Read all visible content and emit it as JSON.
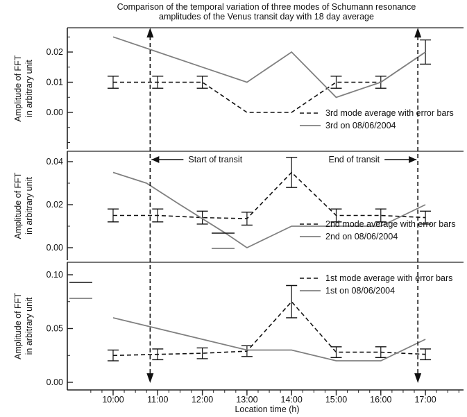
{
  "figure": {
    "title_line1": "Comparison of the temporal variation of three modes of Schumann resonance",
    "title_line2": "amplitudes of the Venus transit day with 18 day average",
    "xlabel": "Location time (h)",
    "xticks": [
      "10:00",
      "11:00",
      "12:00",
      "13:00",
      "14:00",
      "15:00",
      "16:00",
      "17:00"
    ]
  },
  "annotations": {
    "start_label": "Start of transit",
    "end_label": "End of transit",
    "start_time": 10.83,
    "end_time": 16.83
  },
  "colors": {
    "average": "#111111",
    "day": "#808080",
    "axis": "#222222",
    "frame": "#777777"
  },
  "chart_data": [
    {
      "type": "line",
      "ylabel_line1": "Amplitude of FFT",
      "ylabel_line2": "in arbitrary unit",
      "ylim": [
        -0.012,
        0.028
      ],
      "yticks": [
        0.0,
        0.01,
        0.02
      ],
      "ytick_labels": [
        "0.00",
        "0.01",
        "0.02"
      ],
      "x": [
        10,
        11,
        12,
        13,
        14,
        15,
        16,
        17
      ],
      "legend_position": "bottom-right",
      "series": [
        {
          "name": "3rd mode average with error bars",
          "style": "dashed",
          "values": [
            0.01,
            0.01,
            0.01,
            0.0,
            0.0,
            0.01,
            0.01,
            0.02
          ],
          "errors": [
            0.002,
            0.002,
            0.002,
            0.0,
            0.0,
            0.002,
            0.002,
            0.004
          ]
        },
        {
          "name": "3rd on 08/06/2004",
          "style": "solid",
          "values": [
            0.025,
            0.02,
            0.015,
            0.01,
            0.02,
            0.005,
            0.01,
            0.02
          ]
        }
      ]
    },
    {
      "type": "line",
      "ylabel_line1": "Amplitude of FFT",
      "ylabel_line2": "in arbitrary unit",
      "ylim": [
        -0.004,
        0.046
      ],
      "yticks": [
        0.0,
        0.02,
        0.04
      ],
      "ytick_labels": [
        "0.00",
        "0.02",
        "0.04"
      ],
      "x": [
        10,
        11,
        12,
        13,
        14,
        15,
        16,
        17
      ],
      "legend_position": "bottom-right",
      "series": [
        {
          "name": "2nd mode average with error bars",
          "style": "dashed",
          "values": [
            0.015,
            0.015,
            0.014,
            0.0135,
            0.035,
            0.015,
            0.015,
            0.014
          ],
          "errors": [
            0.003,
            0.003,
            0.003,
            0.003,
            0.007,
            0.003,
            0.003,
            0.003
          ]
        },
        {
          "name": "2nd on 08/06/2004",
          "style": "solid",
          "x": [
            10,
            10.75,
            11.5,
            12.5,
            13,
            13.5,
            14,
            15,
            15.5,
            16,
            17
          ],
          "values": [
            0.035,
            0.03,
            0.02,
            0.007,
            0.0,
            0.005,
            0.01,
            0.01,
            0.01,
            0.01,
            0.02
          ]
        }
      ]
    },
    {
      "type": "line",
      "ylabel_line1": "Amplitude of FFT",
      "ylabel_line2": "in arbitrary unit",
      "ylim": [
        -0.003,
        0.1
      ],
      "yticks": [
        0.0,
        0.05,
        0.1
      ],
      "ytick_labels": [
        "0.00",
        "0.05",
        "0.10"
      ],
      "x": [
        10,
        11,
        12,
        13,
        14,
        15,
        16,
        17
      ],
      "legend_position": "top-right",
      "series": [
        {
          "name": "1st mode average with error bars",
          "style": "dashed",
          "values": [
            0.025,
            0.026,
            0.027,
            0.029,
            0.075,
            0.028,
            0.028,
            0.026
          ],
          "errors": [
            0.005,
            0.005,
            0.005,
            0.005,
            0.015,
            0.005,
            0.005,
            0.005
          ]
        },
        {
          "name": "1st on 08/06/2004",
          "style": "solid",
          "values": [
            0.06,
            0.05,
            0.04,
            0.03,
            0.03,
            0.02,
            0.02,
            0.04
          ]
        }
      ]
    }
  ]
}
